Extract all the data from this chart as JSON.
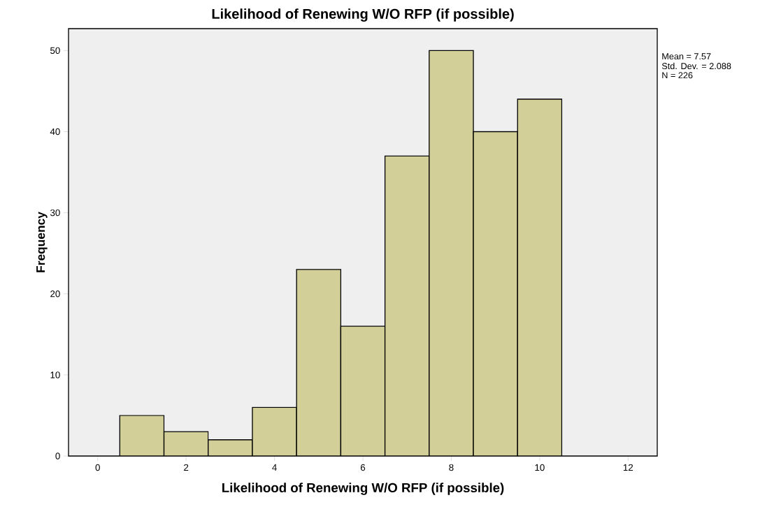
{
  "chart_data": {
    "type": "histogram",
    "title": "Likelihood of Renewing W/O RFP (if possible)",
    "xlabel": "Likelihood of Renewing W/O RFP (if possible)",
    "ylabel": "Frequency",
    "annotations": [
      "Mean = 7.57",
      "Std. Dev. = 2.088",
      "N = 226"
    ],
    "bins": [
      0.5,
      1.5,
      2.5,
      3.5,
      4.5,
      5.5,
      6.5,
      7.5,
      8.5,
      9.5,
      10.5
    ],
    "values": [
      5,
      3,
      2,
      6,
      23,
      16,
      37,
      50,
      40,
      44
    ],
    "color": "#d3cf98",
    "xlim": [
      -0.66,
      12.66
    ],
    "ylim": [
      0,
      52.7
    ],
    "xticks": [
      0,
      2,
      4,
      6,
      8,
      10,
      12
    ],
    "yticks": [
      0,
      10,
      20,
      30,
      40,
      50
    ]
  }
}
